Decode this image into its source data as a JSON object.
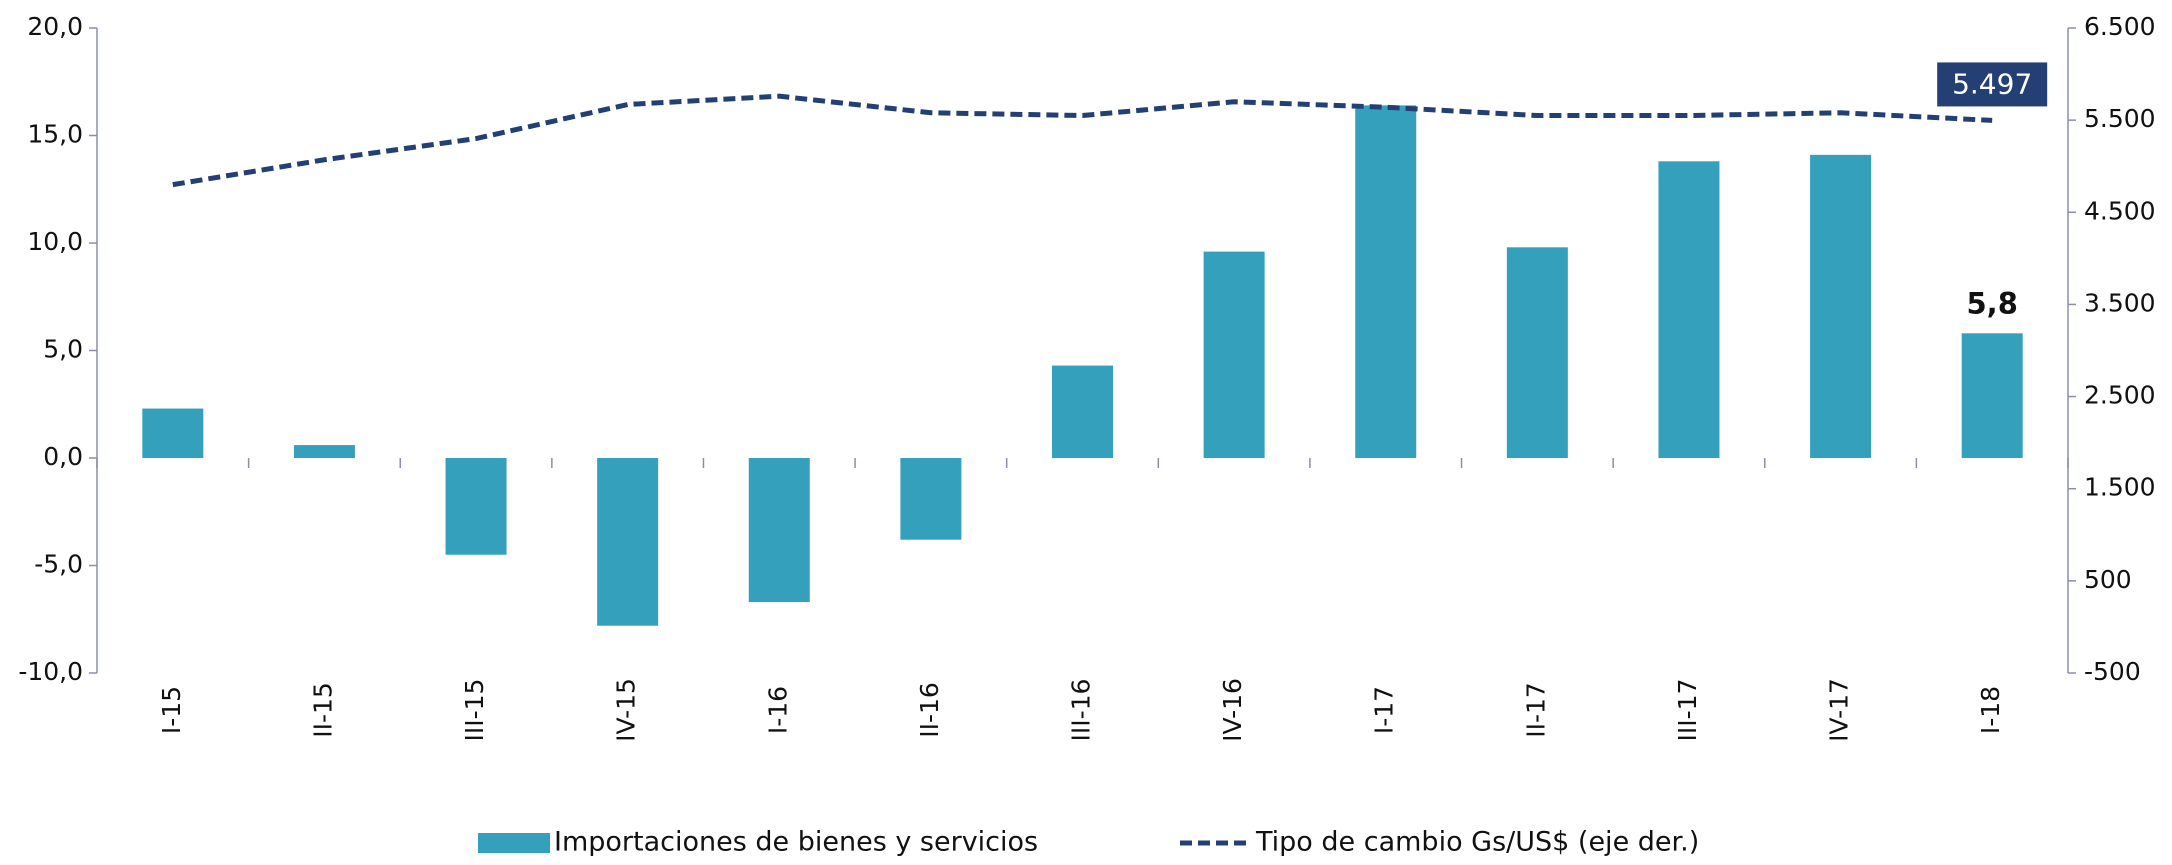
{
  "chart_data": {
    "type": "bar",
    "categories": [
      "I-15",
      "II-15",
      "III-15",
      "IV-15",
      "I-16",
      "II-16",
      "III-16",
      "IV-16",
      "I-17",
      "II-17",
      "III-17",
      "IV-17",
      "I-18"
    ],
    "series": [
      {
        "name": "Importaciones de bienes y servicios",
        "type": "bar",
        "color": "#35a0bc",
        "values": [
          2.3,
          0.6,
          -4.5,
          -7.8,
          -6.7,
          -3.8,
          4.3,
          9.6,
          16.4,
          9.8,
          13.8,
          14.1,
          5.8
        ],
        "value_labels": [
          null,
          null,
          null,
          null,
          null,
          null,
          null,
          null,
          null,
          null,
          null,
          null,
          "5,8"
        ]
      },
      {
        "name": "Tipo de cambio Gs/US$ (eje der.)",
        "type": "line",
        "axis": "y2",
        "color": "#243f73",
        "values": [
          4800,
          5070,
          5300,
          5670,
          5760,
          5580,
          5550,
          5700,
          5640,
          5550,
          5550,
          5580,
          5497
        ],
        "value_labels": [
          null,
          null,
          null,
          null,
          null,
          null,
          null,
          null,
          null,
          null,
          null,
          null,
          "5.497"
        ]
      }
    ],
    "ylim": [
      -10,
      20
    ],
    "yticks": [
      {
        "value": -10,
        "label": "-10,0"
      },
      {
        "value": -5,
        "label": "-5,0"
      },
      {
        "value": 0,
        "label": "0,0"
      },
      {
        "value": 5,
        "label": "5,0"
      },
      {
        "value": 10,
        "label": "10,0"
      },
      {
        "value": 15,
        "label": "15,0"
      },
      {
        "value": 20,
        "label": "20,0"
      }
    ],
    "y2lim": [
      -500,
      6500
    ],
    "y2ticks": [
      -500,
      500,
      {
        "value": 1500,
        "label": "1.500"
      },
      {
        "value": 2500,
        "label": "2.500"
      },
      {
        "value": 3500,
        "label": "3.500"
      },
      {
        "value": 4500,
        "label": "4.500"
      },
      {
        "value": 5500,
        "label": "5.500"
      },
      {
        "value": 6500,
        "label": "6.500"
      }
    ],
    "legend": "bottom"
  }
}
